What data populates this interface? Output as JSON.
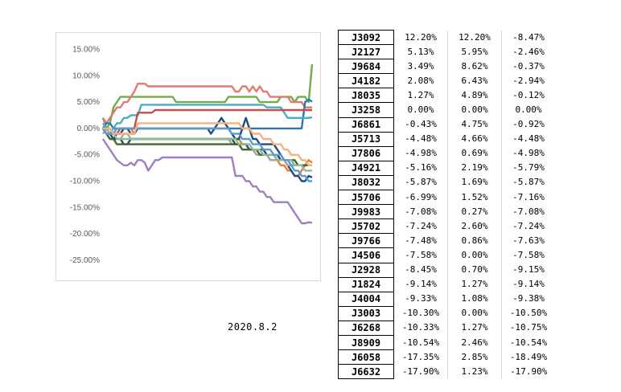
{
  "date_label": "2020.8.2",
  "chart_data": {
    "type": "line",
    "ylim": [
      -0.27,
      0.16
    ],
    "yticks": [
      "15.00%",
      "10.00%",
      "5.00%",
      "0.00%",
      "-5.00%",
      "-10.00%",
      "-15.00%",
      "-20.00%",
      "-25.00%"
    ],
    "ytick_values": [
      0.15,
      0.1,
      0.05,
      0.0,
      -0.05,
      -0.1,
      -0.15,
      -0.2,
      -0.25
    ],
    "xlim": [
      0,
      60
    ],
    "grid": false,
    "legend": "none",
    "series": [
      {
        "color": "#70ad47",
        "values": [
          0.02,
          0.0,
          0.01,
          0.04,
          0.05,
          0.06,
          0.06,
          0.06,
          0.06,
          0.06,
          0.06,
          0.06,
          0.06,
          0.06,
          0.06,
          0.06,
          0.06,
          0.06,
          0.06,
          0.06,
          0.06,
          0.05,
          0.05,
          0.05,
          0.05,
          0.05,
          0.05,
          0.05,
          0.05,
          0.05,
          0.05,
          0.05,
          0.05,
          0.05,
          0.05,
          0.05,
          0.06,
          0.06,
          0.06,
          0.06,
          0.06,
          0.06,
          0.06,
          0.06,
          0.06,
          0.05,
          0.05,
          0.05,
          0.05,
          0.05,
          0.05,
          0.06,
          0.06,
          0.06,
          0.06,
          0.05,
          0.06,
          0.06,
          0.06,
          0.05,
          0.122
        ]
      },
      {
        "color": "#e07a73",
        "values": [
          0.02,
          0.01,
          0.02,
          0.03,
          0.04,
          0.04,
          0.05,
          0.05,
          0.06,
          0.07,
          0.085,
          0.085,
          0.085,
          0.08,
          0.08,
          0.08,
          0.08,
          0.08,
          0.08,
          0.08,
          0.08,
          0.08,
          0.08,
          0.08,
          0.08,
          0.08,
          0.08,
          0.08,
          0.08,
          0.08,
          0.08,
          0.08,
          0.08,
          0.08,
          0.08,
          0.08,
          0.08,
          0.08,
          0.07,
          0.07,
          0.08,
          0.08,
          0.07,
          0.08,
          0.07,
          0.08,
          0.07,
          0.07,
          0.06,
          0.06,
          0.06,
          0.06,
          0.06,
          0.06,
          0.05,
          0.05,
          0.05,
          0.05,
          0.04,
          0.04,
          0.04
        ]
      },
      {
        "color": "#9f7fbf",
        "values": [
          -0.02,
          -0.03,
          -0.04,
          -0.05,
          -0.06,
          -0.065,
          -0.07,
          -0.07,
          -0.065,
          -0.07,
          -0.06,
          -0.06,
          -0.065,
          -0.08,
          -0.07,
          -0.06,
          -0.06,
          -0.055,
          -0.055,
          -0.055,
          -0.055,
          -0.055,
          -0.055,
          -0.055,
          -0.055,
          -0.055,
          -0.055,
          -0.055,
          -0.055,
          -0.055,
          -0.055,
          -0.055,
          -0.055,
          -0.055,
          -0.055,
          -0.055,
          -0.055,
          -0.055,
          -0.09,
          -0.09,
          -0.09,
          -0.1,
          -0.1,
          -0.11,
          -0.11,
          -0.12,
          -0.12,
          -0.13,
          -0.13,
          -0.14,
          -0.14,
          -0.14,
          -0.14,
          -0.14,
          -0.15,
          -0.16,
          -0.17,
          -0.18,
          -0.18,
          -0.178,
          -0.179
        ]
      },
      {
        "color": "#2e75b6",
        "values": [
          0.0,
          0.01,
          0.01,
          0.0,
          0.0,
          0.0,
          0.0,
          0.0,
          0.0,
          0.0,
          0.0,
          0.0,
          0.0,
          0.0,
          0.0,
          0.0,
          0.0,
          0.0,
          0.0,
          0.0,
          0.0,
          0.0,
          0.0,
          0.0,
          0.0,
          0.0,
          0.0,
          0.0,
          0.0,
          0.0,
          0.0,
          0.0,
          0.0,
          0.0,
          0.0,
          0.0,
          0.0,
          0.0,
          0.0,
          0.0,
          0.0,
          0.0,
          0.0,
          0.0,
          0.0,
          0.0,
          0.0,
          0.0,
          0.0,
          0.0,
          0.0,
          0.0,
          0.0,
          0.0,
          0.0,
          0.0,
          0.0,
          0.0,
          0.05,
          0.055,
          0.051
        ]
      },
      {
        "color": "#4bacc6",
        "values": [
          0.01,
          0.0,
          -0.01,
          0.0,
          0.01,
          0.01,
          0.02,
          0.02,
          0.025,
          0.025,
          0.025,
          0.045,
          0.045,
          0.045,
          0.045,
          0.045,
          0.045,
          0.045,
          0.045,
          0.045,
          0.045,
          0.045,
          0.045,
          0.045,
          0.045,
          0.045,
          0.045,
          0.045,
          0.045,
          0.045,
          0.045,
          0.045,
          0.045,
          0.045,
          0.045,
          0.045,
          0.045,
          0.045,
          0.045,
          0.045,
          0.045,
          0.045,
          0.045,
          0.045,
          0.045,
          0.045,
          0.045,
          0.04,
          0.04,
          0.04,
          0.04,
          0.04,
          0.03,
          0.02,
          0.02,
          0.02,
          0.02,
          0.02,
          0.02,
          0.02,
          0.021
        ]
      },
      {
        "color": "#ed7d31",
        "values": [
          0.0,
          0.0,
          0.0,
          -0.01,
          0.0,
          0.0,
          0.0,
          0.0,
          0.0,
          -0.01,
          0.0,
          0.0,
          0.0,
          0.0,
          0.0,
          0.0,
          0.0,
          0.0,
          0.0,
          0.0,
          0.0,
          0.0,
          0.0,
          0.0,
          0.0,
          0.0,
          0.0,
          0.0,
          0.0,
          0.0,
          0.0,
          0.0,
          0.0,
          0.0,
          0.0,
          0.0,
          0.0,
          -0.01,
          -0.02,
          -0.02,
          -0.03,
          -0.03,
          -0.03,
          -0.04,
          -0.04,
          -0.04,
          -0.05,
          -0.05,
          -0.06,
          -0.06,
          -0.06,
          -0.07,
          -0.07,
          -0.08,
          -0.08,
          -0.09,
          -0.09,
          -0.08,
          -0.07,
          -0.06,
          -0.065
        ]
      },
      {
        "color": "#c0504d",
        "values": [
          0.0,
          -0.01,
          -0.01,
          -0.01,
          -0.01,
          0.0,
          0.0,
          0.0,
          0.0,
          0.0,
          0.03,
          0.03,
          0.03,
          0.03,
          0.03,
          0.035,
          0.035,
          0.035,
          0.035,
          0.035,
          0.035,
          0.035,
          0.035,
          0.035,
          0.035,
          0.035,
          0.035,
          0.035,
          0.035,
          0.035,
          0.035,
          0.035,
          0.035,
          0.035,
          0.035,
          0.035,
          0.035,
          0.035,
          0.035,
          0.035,
          0.035,
          0.035,
          0.035,
          0.035,
          0.035,
          0.035,
          0.035,
          0.035,
          0.035,
          0.035,
          0.035,
          0.035,
          0.035,
          0.035,
          0.035,
          0.035,
          0.035,
          0.035,
          0.035,
          0.035,
          0.035
        ]
      },
      {
        "color": "#1f4e79",
        "values": [
          0.0,
          -0.01,
          -0.02,
          -0.02,
          -0.01,
          -0.01,
          0.0,
          0.0,
          -0.01,
          -0.01,
          0.0,
          0.0,
          0.0,
          0.0,
          0.0,
          0.0,
          0.0,
          0.0,
          0.0,
          0.0,
          0.0,
          0.0,
          0.0,
          0.0,
          0.0,
          0.0,
          0.0,
          0.0,
          0.0,
          0.0,
          0.0,
          -0.01,
          0.0,
          0.01,
          0.02,
          0.01,
          0.0,
          -0.01,
          -0.02,
          -0.02,
          0.0,
          0.02,
          0.0,
          -0.02,
          -0.02,
          -0.03,
          -0.03,
          -0.03,
          -0.03,
          -0.03,
          -0.04,
          -0.05,
          -0.06,
          -0.07,
          -0.08,
          -0.09,
          -0.09,
          -0.1,
          -0.1,
          -0.09,
          -0.093
        ]
      },
      {
        "color": "#a5a5a5",
        "values": [
          -0.01,
          0.0,
          0.0,
          -0.01,
          -0.02,
          -0.02,
          -0.01,
          -0.01,
          -0.02,
          -0.02,
          -0.02,
          -0.02,
          -0.02,
          -0.02,
          -0.02,
          -0.02,
          -0.02,
          -0.02,
          -0.02,
          -0.02,
          -0.02,
          -0.02,
          -0.02,
          -0.02,
          -0.02,
          -0.02,
          -0.02,
          -0.02,
          -0.02,
          -0.02,
          -0.02,
          -0.02,
          -0.02,
          -0.02,
          -0.02,
          -0.02,
          -0.02,
          -0.03,
          -0.03,
          -0.03,
          -0.04,
          -0.04,
          -0.04,
          -0.04,
          -0.05,
          -0.05,
          -0.05,
          -0.05,
          -0.06,
          -0.06,
          -0.06,
          -0.06,
          -0.06,
          -0.07,
          -0.07,
          -0.07,
          -0.07,
          -0.07,
          -0.07,
          -0.07,
          -0.07
        ]
      },
      {
        "color": "#264478",
        "values": [
          0.0,
          0.0,
          -0.01,
          -0.02,
          -0.02,
          -0.02,
          -0.03,
          -0.03,
          -0.02,
          -0.02,
          -0.02,
          -0.02,
          -0.02,
          -0.02,
          -0.02,
          -0.02,
          -0.02,
          -0.02,
          -0.02,
          -0.02,
          -0.02,
          -0.02,
          -0.02,
          -0.02,
          -0.02,
          -0.02,
          -0.02,
          -0.02,
          -0.02,
          -0.02,
          -0.02,
          -0.02,
          -0.02,
          -0.02,
          -0.02,
          -0.02,
          -0.02,
          -0.02,
          -0.03,
          -0.03,
          -0.03,
          -0.03,
          -0.04,
          -0.04,
          -0.04,
          -0.04,
          -0.04,
          -0.05,
          -0.05,
          -0.05,
          -0.05,
          -0.06,
          -0.06,
          -0.06,
          -0.06,
          -0.07,
          -0.07,
          -0.07,
          -0.07,
          -0.07,
          -0.07
        ]
      },
      {
        "color": "#43682b",
        "values": [
          0.0,
          -0.01,
          -0.02,
          -0.02,
          -0.03,
          -0.03,
          -0.03,
          -0.03,
          -0.03,
          -0.03,
          -0.03,
          -0.03,
          -0.03,
          -0.03,
          -0.03,
          -0.03,
          -0.03,
          -0.03,
          -0.03,
          -0.03,
          -0.03,
          -0.03,
          -0.03,
          -0.03,
          -0.03,
          -0.03,
          -0.03,
          -0.03,
          -0.03,
          -0.03,
          -0.03,
          -0.03,
          -0.03,
          -0.03,
          -0.03,
          -0.03,
          -0.03,
          -0.03,
          -0.03,
          -0.03,
          -0.04,
          -0.04,
          -0.04,
          -0.04,
          -0.04,
          -0.05,
          -0.05,
          -0.05,
          -0.05,
          -0.05,
          -0.06,
          -0.06,
          -0.06,
          -0.06,
          -0.06,
          -0.06,
          -0.07,
          -0.07,
          -0.07,
          -0.07,
          -0.07
        ]
      },
      {
        "color": "#8fbc8f",
        "values": [
          0.0,
          0.0,
          -0.01,
          -0.01,
          -0.02,
          -0.02,
          -0.02,
          -0.02,
          -0.02,
          -0.02,
          -0.02,
          -0.02,
          -0.02,
          -0.02,
          -0.02,
          -0.02,
          -0.02,
          -0.02,
          -0.02,
          -0.02,
          -0.02,
          -0.02,
          -0.02,
          -0.02,
          -0.02,
          -0.02,
          -0.02,
          -0.02,
          -0.02,
          -0.02,
          -0.02,
          -0.02,
          -0.02,
          -0.02,
          -0.02,
          -0.02,
          -0.02,
          -0.02,
          -0.02,
          -0.03,
          -0.03,
          -0.03,
          -0.03,
          -0.04,
          -0.04,
          -0.04,
          -0.05,
          -0.05,
          -0.05,
          -0.05,
          -0.06,
          -0.06,
          -0.06,
          -0.06,
          -0.06,
          -0.07,
          -0.07,
          -0.07,
          -0.08,
          -0.08,
          -0.08
        ]
      },
      {
        "color": "#5b9bd5",
        "values": [
          0.0,
          -0.01,
          -0.01,
          -0.01,
          0.0,
          0.0,
          0.0,
          0.0,
          0.0,
          0.0,
          0.0,
          0.0,
          0.0,
          0.0,
          0.0,
          0.0,
          0.0,
          0.0,
          0.0,
          0.0,
          0.0,
          0.0,
          0.0,
          0.0,
          0.0,
          0.0,
          0.0,
          0.0,
          0.0,
          0.0,
          0.0,
          0.0,
          0.0,
          0.0,
          0.0,
          0.0,
          0.0,
          -0.01,
          -0.01,
          -0.01,
          -0.02,
          -0.02,
          -0.02,
          -0.03,
          -0.03,
          -0.03,
          -0.04,
          -0.04,
          -0.04,
          -0.05,
          -0.05,
          -0.05,
          -0.06,
          -0.06,
          -0.07,
          -0.08,
          -0.08,
          -0.09,
          -0.09,
          -0.1,
          -0.1
        ]
      },
      {
        "color": "#f4b183",
        "values": [
          0.0,
          0.0,
          0.0,
          -0.01,
          -0.01,
          -0.01,
          -0.01,
          -0.01,
          -0.01,
          -0.01,
          0.01,
          0.01,
          0.01,
          0.01,
          0.01,
          0.01,
          0.01,
          0.01,
          0.01,
          0.01,
          0.01,
          0.01,
          0.01,
          0.01,
          0.01,
          0.01,
          0.01,
          0.01,
          0.01,
          0.01,
          0.01,
          0.01,
          0.01,
          0.01,
          0.01,
          0.01,
          0.01,
          0.01,
          0.01,
          0.01,
          0.0,
          0.0,
          0.0,
          -0.01,
          -0.01,
          -0.01,
          -0.02,
          -0.02,
          -0.02,
          -0.03,
          -0.03,
          -0.03,
          -0.04,
          -0.04,
          -0.05,
          -0.05,
          -0.05,
          -0.06,
          -0.06,
          -0.07,
          -0.07
        ]
      }
    ]
  },
  "table": {
    "rows": [
      {
        "code": "J3092",
        "v1": "12.20%",
        "v2": "12.20%",
        "v3": "-8.47%"
      },
      {
        "code": "J2127",
        "v1": "5.13%",
        "v2": "5.95%",
        "v3": "-2.46%"
      },
      {
        "code": "J9684",
        "v1": "3.49%",
        "v2": "8.62%",
        "v3": "-0.37%"
      },
      {
        "code": "J4182",
        "v1": "2.08%",
        "v2": "6.43%",
        "v3": "-2.94%"
      },
      {
        "code": "J8035",
        "v1": "1.27%",
        "v2": "4.89%",
        "v3": "-0.12%"
      },
      {
        "code": "J3258",
        "v1": "0.00%",
        "v2": "0.00%",
        "v3": "0.00%"
      },
      {
        "code": "J6861",
        "v1": "-0.43%",
        "v2": "4.75%",
        "v3": "-0.92%"
      },
      {
        "code": "J5713",
        "v1": "-4.48%",
        "v2": "4.66%",
        "v3": "-4.48%"
      },
      {
        "code": "J7806",
        "v1": "-4.98%",
        "v2": "0.69%",
        "v3": "-4.98%"
      },
      {
        "code": "J4921",
        "v1": "-5.16%",
        "v2": "2.19%",
        "v3": "-5.79%"
      },
      {
        "code": "J8032",
        "v1": "-5.87%",
        "v2": "1.69%",
        "v3": "-5.87%"
      },
      {
        "code": "J5706",
        "v1": "-6.99%",
        "v2": "1.52%",
        "v3": "-7.16%"
      },
      {
        "code": "J9983",
        "v1": "-7.08%",
        "v2": "0.27%",
        "v3": "-7.08%"
      },
      {
        "code": "J5702",
        "v1": "-7.24%",
        "v2": "2.60%",
        "v3": "-7.24%"
      },
      {
        "code": "J9766",
        "v1": "-7.48%",
        "v2": "0.86%",
        "v3": "-7.63%"
      },
      {
        "code": "J4506",
        "v1": "-7.58%",
        "v2": "0.00%",
        "v3": "-7.58%"
      },
      {
        "code": "J2928",
        "v1": "-8.45%",
        "v2": "0.70%",
        "v3": "-9.15%"
      },
      {
        "code": "J1824",
        "v1": "-9.14%",
        "v2": "1.27%",
        "v3": "-9.14%"
      },
      {
        "code": "J4004",
        "v1": "-9.33%",
        "v2": "1.08%",
        "v3": "-9.38%"
      },
      {
        "code": "J3003",
        "v1": "-10.30%",
        "v2": "0.00%",
        "v3": "-10.50%"
      },
      {
        "code": "J6268",
        "v1": "-10.33%",
        "v2": "1.27%",
        "v3": "-10.75%"
      },
      {
        "code": "J8909",
        "v1": "-10.54%",
        "v2": "2.46%",
        "v3": "-10.54%"
      },
      {
        "code": "J6058",
        "v1": "-17.35%",
        "v2": "2.85%",
        "v3": "-18.49%"
      },
      {
        "code": "J6632",
        "v1": "-17.90%",
        "v2": "1.23%",
        "v3": "-17.90%"
      }
    ]
  }
}
